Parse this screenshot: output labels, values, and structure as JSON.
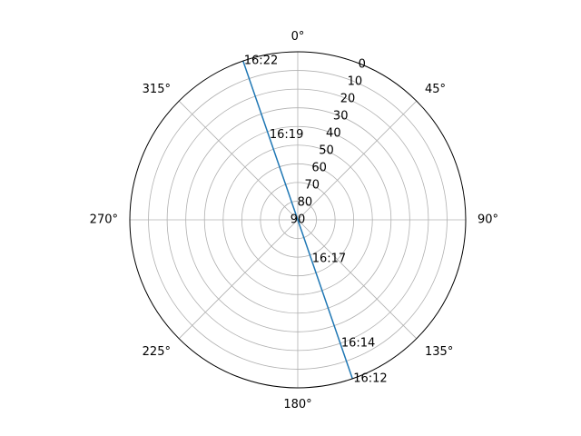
{
  "chart_data": {
    "type": "line",
    "projection": "polar",
    "theta_zero_location": "N",
    "theta_direction": "clockwise",
    "theta_tick_labels": [
      "0°",
      "45°",
      "90°",
      "135°",
      "180°",
      "225°",
      "270°",
      "315°"
    ],
    "r_axis": {
      "inverted": true,
      "range": [
        0,
        90
      ],
      "ticks": [
        0,
        10,
        20,
        30,
        40,
        50,
        60,
        70,
        80,
        90
      ]
    },
    "r_tick_labels": [
      "0",
      "10",
      "20",
      "30",
      "40",
      "50",
      "60",
      "70",
      "80",
      "90"
    ],
    "r_label_angle_deg": 22.5,
    "grid": true,
    "series": [
      {
        "color": "#1f77b4",
        "points": [
          {
            "theta_deg": 161,
            "r": 0
          },
          {
            "theta_deg": 161,
            "r": 90
          },
          {
            "theta_deg": 341,
            "r": 90
          },
          {
            "theta_deg": 341,
            "r": 0
          }
        ]
      }
    ],
    "annotations": [
      {
        "text": "16:12",
        "theta_deg": 161,
        "r": 0
      },
      {
        "text": "16:14",
        "theta_deg": 161,
        "r": 20
      },
      {
        "text": "16:17",
        "theta_deg": 161,
        "r": 68
      },
      {
        "text": "16:19",
        "theta_deg": 341,
        "r": 42
      },
      {
        "text": "16:22",
        "theta_deg": 341,
        "r": 0
      }
    ]
  }
}
